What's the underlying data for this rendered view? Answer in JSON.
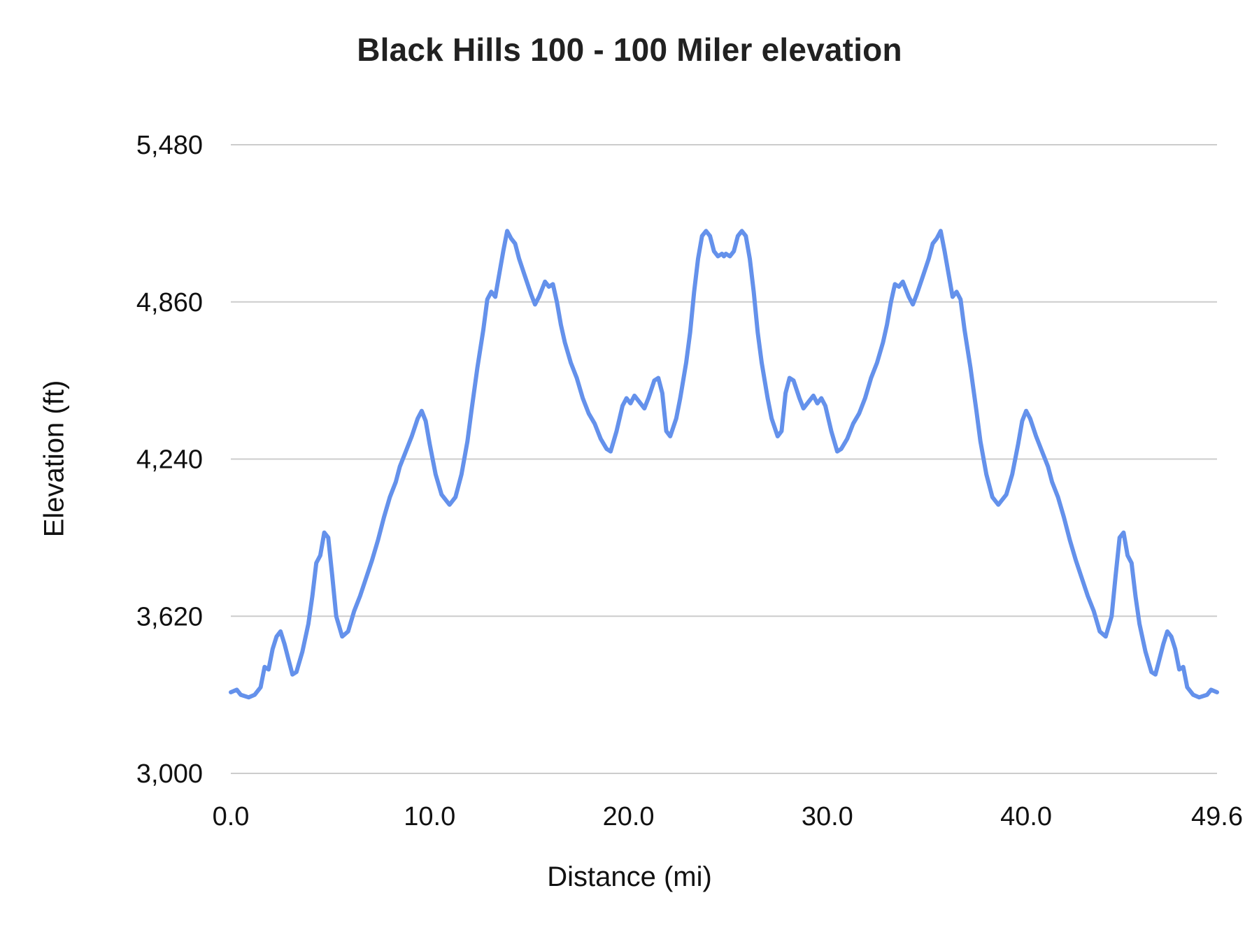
{
  "chart_data": {
    "type": "line",
    "title": "Black Hills 100 - 100 Miler elevation",
    "xlabel": "Distance (mi)",
    "ylabel": "Elevation (ft)",
    "xlim": [
      0,
      49.6
    ],
    "ylim": [
      3000,
      5480
    ],
    "grid": true,
    "legend": "none",
    "colors": {
      "line": "#6491eb",
      "gridline": "#cccccc",
      "title": "#212121",
      "labels": "#111111",
      "background": "#ffffff"
    },
    "xticks": [
      {
        "value": 0,
        "label": "0.0"
      },
      {
        "value": 10,
        "label": "10.0"
      },
      {
        "value": 20,
        "label": "20.0"
      },
      {
        "value": 30,
        "label": "30.0"
      },
      {
        "value": 40,
        "label": "40.0"
      },
      {
        "value": 49.6,
        "label": "49.6"
      }
    ],
    "yticks": [
      {
        "value": 3000,
        "label": "3,000"
      },
      {
        "value": 3620,
        "label": "3,620"
      },
      {
        "value": 4240,
        "label": "4,240"
      },
      {
        "value": 4860,
        "label": "4,860"
      },
      {
        "value": 5480,
        "label": "5,480"
      }
    ],
    "series": [
      {
        "points": [
          [
            0.0,
            3320
          ],
          [
            0.3,
            3330
          ],
          [
            0.5,
            3310
          ],
          [
            0.9,
            3300
          ],
          [
            1.2,
            3310
          ],
          [
            1.5,
            3340
          ],
          [
            1.7,
            3420
          ],
          [
            1.9,
            3410
          ],
          [
            2.1,
            3490
          ],
          [
            2.3,
            3540
          ],
          [
            2.5,
            3560
          ],
          [
            2.7,
            3510
          ],
          [
            2.9,
            3450
          ],
          [
            3.1,
            3390
          ],
          [
            3.3,
            3400
          ],
          [
            3.6,
            3480
          ],
          [
            3.9,
            3590
          ],
          [
            4.1,
            3700
          ],
          [
            4.3,
            3830
          ],
          [
            4.5,
            3860
          ],
          [
            4.7,
            3950
          ],
          [
            4.9,
            3930
          ],
          [
            5.1,
            3780
          ],
          [
            5.3,
            3620
          ],
          [
            5.6,
            3540
          ],
          [
            5.9,
            3560
          ],
          [
            6.2,
            3640
          ],
          [
            6.5,
            3700
          ],
          [
            6.8,
            3770
          ],
          [
            7.1,
            3840
          ],
          [
            7.4,
            3920
          ],
          [
            7.7,
            4010
          ],
          [
            8.0,
            4090
          ],
          [
            8.3,
            4150
          ],
          [
            8.5,
            4210
          ],
          [
            8.8,
            4270
          ],
          [
            9.1,
            4330
          ],
          [
            9.4,
            4400
          ],
          [
            9.6,
            4430
          ],
          [
            9.8,
            4390
          ],
          [
            10.0,
            4300
          ],
          [
            10.3,
            4180
          ],
          [
            10.6,
            4100
          ],
          [
            11.0,
            4060
          ],
          [
            11.3,
            4090
          ],
          [
            11.6,
            4180
          ],
          [
            11.9,
            4310
          ],
          [
            12.1,
            4430
          ],
          [
            12.4,
            4600
          ],
          [
            12.7,
            4750
          ],
          [
            12.9,
            4870
          ],
          [
            13.1,
            4900
          ],
          [
            13.3,
            4880
          ],
          [
            13.5,
            4970
          ],
          [
            13.7,
            5060
          ],
          [
            13.9,
            5140
          ],
          [
            14.1,
            5110
          ],
          [
            14.3,
            5090
          ],
          [
            14.5,
            5030
          ],
          [
            14.8,
            4960
          ],
          [
            15.1,
            4890
          ],
          [
            15.3,
            4850
          ],
          [
            15.5,
            4880
          ],
          [
            15.8,
            4940
          ],
          [
            16.0,
            4920
          ],
          [
            16.2,
            4930
          ],
          [
            16.4,
            4860
          ],
          [
            16.6,
            4770
          ],
          [
            16.8,
            4700
          ],
          [
            17.1,
            4620
          ],
          [
            17.4,
            4560
          ],
          [
            17.7,
            4480
          ],
          [
            18.0,
            4420
          ],
          [
            18.3,
            4380
          ],
          [
            18.6,
            4320
          ],
          [
            18.9,
            4280
          ],
          [
            19.1,
            4270
          ],
          [
            19.4,
            4350
          ],
          [
            19.7,
            4450
          ],
          [
            19.9,
            4480
          ],
          [
            20.1,
            4460
          ],
          [
            20.3,
            4490
          ],
          [
            20.5,
            4470
          ],
          [
            20.8,
            4440
          ],
          [
            21.0,
            4480
          ],
          [
            21.3,
            4550
          ],
          [
            21.5,
            4560
          ],
          [
            21.7,
            4500
          ],
          [
            21.9,
            4350
          ],
          [
            22.1,
            4330
          ],
          [
            22.4,
            4400
          ],
          [
            22.6,
            4480
          ],
          [
            22.9,
            4620
          ],
          [
            23.1,
            4740
          ],
          [
            23.3,
            4900
          ],
          [
            23.5,
            5030
          ],
          [
            23.7,
            5120
          ],
          [
            23.9,
            5140
          ],
          [
            24.1,
            5120
          ],
          [
            24.3,
            5060
          ],
          [
            24.5,
            5040
          ],
          [
            24.7,
            5050
          ],
          [
            24.8,
            5040
          ],
          [
            24.9,
            5050
          ],
          [
            25.1,
            5040
          ],
          [
            25.3,
            5060
          ],
          [
            25.5,
            5120
          ],
          [
            25.7,
            5140
          ],
          [
            25.9,
            5120
          ],
          [
            26.1,
            5030
          ],
          [
            26.3,
            4900
          ],
          [
            26.5,
            4740
          ],
          [
            26.7,
            4620
          ],
          [
            27.0,
            4480
          ],
          [
            27.2,
            4400
          ],
          [
            27.5,
            4330
          ],
          [
            27.7,
            4350
          ],
          [
            27.9,
            4500
          ],
          [
            28.1,
            4560
          ],
          [
            28.3,
            4550
          ],
          [
            28.6,
            4480
          ],
          [
            28.8,
            4440
          ],
          [
            29.1,
            4470
          ],
          [
            29.3,
            4490
          ],
          [
            29.5,
            4460
          ],
          [
            29.7,
            4480
          ],
          [
            29.9,
            4450
          ],
          [
            30.2,
            4350
          ],
          [
            30.5,
            4270
          ],
          [
            30.7,
            4280
          ],
          [
            31.0,
            4320
          ],
          [
            31.3,
            4380
          ],
          [
            31.6,
            4420
          ],
          [
            31.9,
            4480
          ],
          [
            32.2,
            4560
          ],
          [
            32.5,
            4620
          ],
          [
            32.8,
            4700
          ],
          [
            33.0,
            4770
          ],
          [
            33.2,
            4860
          ],
          [
            33.4,
            4930
          ],
          [
            33.6,
            4920
          ],
          [
            33.8,
            4940
          ],
          [
            34.1,
            4880
          ],
          [
            34.3,
            4850
          ],
          [
            34.5,
            4890
          ],
          [
            34.8,
            4960
          ],
          [
            35.1,
            5030
          ],
          [
            35.3,
            5090
          ],
          [
            35.5,
            5110
          ],
          [
            35.7,
            5140
          ],
          [
            35.9,
            5060
          ],
          [
            36.1,
            4970
          ],
          [
            36.3,
            4880
          ],
          [
            36.5,
            4900
          ],
          [
            36.7,
            4870
          ],
          [
            36.9,
            4750
          ],
          [
            37.2,
            4600
          ],
          [
            37.5,
            4430
          ],
          [
            37.7,
            4310
          ],
          [
            38.0,
            4180
          ],
          [
            38.3,
            4090
          ],
          [
            38.6,
            4060
          ],
          [
            39.0,
            4100
          ],
          [
            39.3,
            4180
          ],
          [
            39.6,
            4300
          ],
          [
            39.8,
            4390
          ],
          [
            40.0,
            4430
          ],
          [
            40.2,
            4400
          ],
          [
            40.5,
            4330
          ],
          [
            40.8,
            4270
          ],
          [
            41.1,
            4210
          ],
          [
            41.3,
            4150
          ],
          [
            41.6,
            4090
          ],
          [
            41.9,
            4010
          ],
          [
            42.2,
            3920
          ],
          [
            42.5,
            3840
          ],
          [
            42.8,
            3770
          ],
          [
            43.1,
            3700
          ],
          [
            43.4,
            3640
          ],
          [
            43.7,
            3560
          ],
          [
            44.0,
            3540
          ],
          [
            44.3,
            3620
          ],
          [
            44.5,
            3780
          ],
          [
            44.7,
            3930
          ],
          [
            44.9,
            3950
          ],
          [
            45.1,
            3860
          ],
          [
            45.3,
            3830
          ],
          [
            45.5,
            3700
          ],
          [
            45.7,
            3590
          ],
          [
            46.0,
            3480
          ],
          [
            46.3,
            3400
          ],
          [
            46.5,
            3390
          ],
          [
            46.7,
            3450
          ],
          [
            46.9,
            3510
          ],
          [
            47.1,
            3560
          ],
          [
            47.3,
            3540
          ],
          [
            47.5,
            3490
          ],
          [
            47.7,
            3410
          ],
          [
            47.9,
            3420
          ],
          [
            48.1,
            3340
          ],
          [
            48.4,
            3310
          ],
          [
            48.7,
            3300
          ],
          [
            49.1,
            3310
          ],
          [
            49.3,
            3330
          ],
          [
            49.6,
            3320
          ]
        ]
      }
    ]
  }
}
